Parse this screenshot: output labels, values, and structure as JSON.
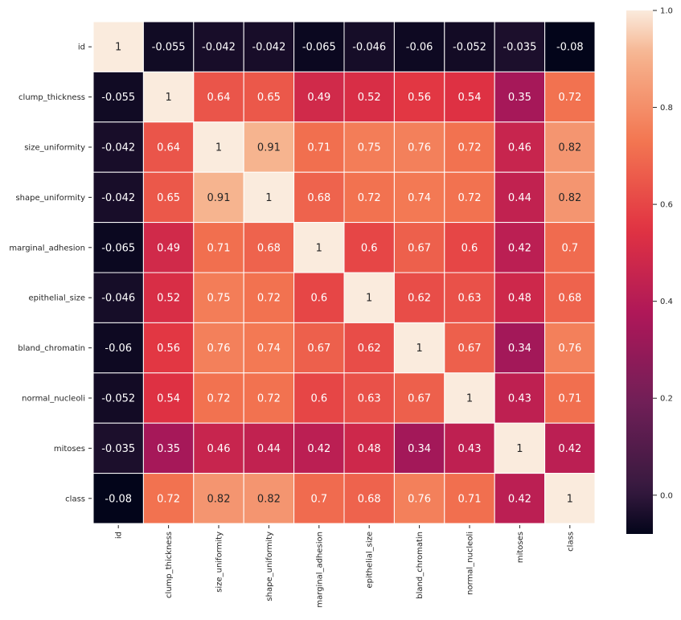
{
  "chart_data": {
    "type": "heatmap",
    "title": "",
    "xlabel": "",
    "ylabel": "",
    "labels": [
      "id",
      "clump_thickness",
      "size_uniformity",
      "shape_uniformity",
      "marginal_adhesion",
      "epithelial_size",
      "bland_chromatin",
      "normal_nucleoli",
      "mitoses",
      "class"
    ],
    "values": [
      [
        "1",
        "-0.055",
        "-0.042",
        "-0.042",
        "-0.065",
        "-0.046",
        "-0.06",
        "-0.052",
        "-0.035",
        "-0.08"
      ],
      [
        "-0.055",
        "1",
        "0.64",
        "0.65",
        "0.49",
        "0.52",
        "0.56",
        "0.54",
        "0.35",
        "0.72"
      ],
      [
        "-0.042",
        "0.64",
        "1",
        "0.91",
        "0.71",
        "0.75",
        "0.76",
        "0.72",
        "0.46",
        "0.82"
      ],
      [
        "-0.042",
        "0.65",
        "0.91",
        "1",
        "0.68",
        "0.72",
        "0.74",
        "0.72",
        "0.44",
        "0.82"
      ],
      [
        "-0.065",
        "0.49",
        "0.71",
        "0.68",
        "1",
        "0.6",
        "0.67",
        "0.6",
        "0.42",
        "0.7"
      ],
      [
        "-0.046",
        "0.52",
        "0.75",
        "0.72",
        "0.6",
        "1",
        "0.62",
        "0.63",
        "0.48",
        "0.68"
      ],
      [
        "-0.06",
        "0.56",
        "0.76",
        "0.74",
        "0.67",
        "0.62",
        "1",
        "0.67",
        "0.34",
        "0.76"
      ],
      [
        "-0.052",
        "0.54",
        "0.72",
        "0.72",
        "0.6",
        "0.63",
        "0.67",
        "1",
        "0.43",
        "0.71"
      ],
      [
        "-0.035",
        "0.35",
        "0.46",
        "0.44",
        "0.42",
        "0.48",
        "0.34",
        "0.43",
        "1",
        "0.42"
      ],
      [
        "-0.08",
        "0.72",
        "0.82",
        "0.82",
        "0.7",
        "0.68",
        "0.76",
        "0.71",
        "0.42",
        "1"
      ]
    ],
    "colormap": "rocket",
    "vmin": -0.08,
    "vmax": 1.0,
    "colorbar_ticks": [
      "0.0",
      "0.2",
      "0.4",
      "0.6",
      "0.8",
      "1.0"
    ],
    "cell_border_color": "#ffffff"
  }
}
